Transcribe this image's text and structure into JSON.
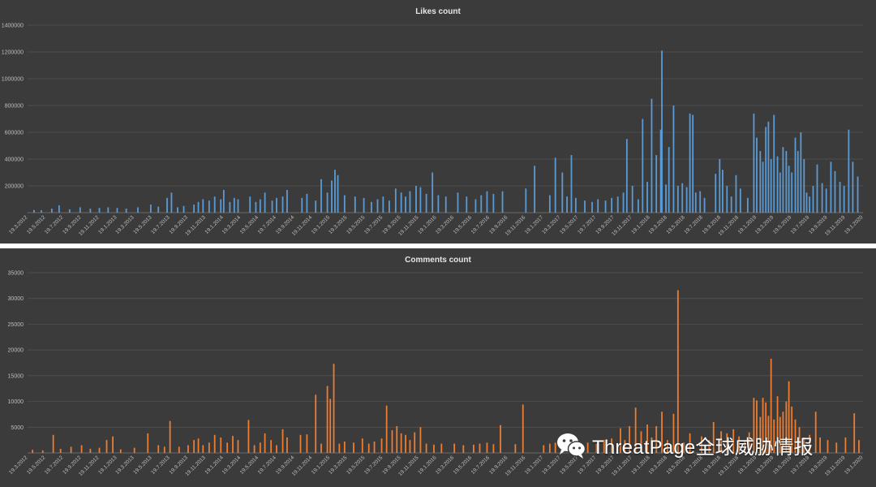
{
  "chart_data": [
    {
      "type": "bar",
      "title": "Likes count",
      "ylim": [
        0,
        1400000
      ],
      "yticks": [
        200000,
        400000,
        600000,
        800000,
        1000000,
        1200000,
        1400000
      ],
      "ytick_labels": [
        "200000",
        "400000",
        "600000",
        "800000",
        "1000000",
        "1200000",
        "1400000"
      ],
      "grid": true,
      "color": "#5b9bd5",
      "x_range": [
        "19.3.2012",
        "19.1.2020"
      ],
      "xtick_labels": [
        "19.3.2012",
        "19.5.2012",
        "19.7.2012",
        "19.9.2012",
        "19.11.2012",
        "19.1.2013",
        "19.3.2013",
        "19.5.2013",
        "19.7.2013",
        "19.9.2013",
        "19.11.2013",
        "19.1.2014",
        "19.3.2014",
        "19.5.2014",
        "19.7.2014",
        "19.9.2014",
        "19.11.2014",
        "19.1.2015",
        "19.3.2015",
        "19.5.2015",
        "19.7.2015",
        "19.9.2015",
        "19.11.2015",
        "19.1.2016",
        "19.3.2016",
        "19.5.2016",
        "19.7.2016",
        "19.9.2016",
        "19.11.2016",
        "19.1.2017",
        "19.3.2017",
        "19.5.2017",
        "19.7.2017",
        "19.9.2017",
        "19.11.2017",
        "19.1.2018",
        "19.3.2018",
        "19.5.2018",
        "19.7.2018",
        "19.9.2018",
        "19.11.2018",
        "19.1.2019",
        "19.3.2019",
        "19.5.2019",
        "19.7.2019",
        "19.9.2019",
        "19.11.2019",
        "19.1.2020"
      ],
      "points": [
        [
          "2012-04-10",
          20000
        ],
        [
          "2012-05-05",
          18000
        ],
        [
          "2012-06-10",
          30000
        ],
        [
          "2012-07-05",
          55000
        ],
        [
          "2012-08-10",
          25000
        ],
        [
          "2012-09-15",
          40000
        ],
        [
          "2012-10-20",
          30000
        ],
        [
          "2012-11-20",
          35000
        ],
        [
          "2012-12-20",
          40000
        ],
        [
          "2013-01-20",
          35000
        ],
        [
          "2013-02-20",
          30000
        ],
        [
          "2013-04-01",
          40000
        ],
        [
          "2013-05-15",
          60000
        ],
        [
          "2013-06-10",
          45000
        ],
        [
          "2013-07-10",
          110000
        ],
        [
          "2013-07-25",
          150000
        ],
        [
          "2013-08-15",
          40000
        ],
        [
          "2013-09-05",
          50000
        ],
        [
          "2013-10-10",
          60000
        ],
        [
          "2013-10-25",
          80000
        ],
        [
          "2013-11-10",
          100000
        ],
        [
          "2013-12-01",
          90000
        ],
        [
          "2013-12-20",
          120000
        ],
        [
          "2014-01-10",
          100000
        ],
        [
          "2014-01-20",
          170000
        ],
        [
          "2014-02-10",
          80000
        ],
        [
          "2014-02-25",
          110000
        ],
        [
          "2014-03-10",
          100000
        ],
        [
          "2014-04-20",
          120000
        ],
        [
          "2014-05-10",
          80000
        ],
        [
          "2014-05-25",
          100000
        ],
        [
          "2014-06-10",
          150000
        ],
        [
          "2014-07-05",
          90000
        ],
        [
          "2014-07-20",
          110000
        ],
        [
          "2014-08-10",
          120000
        ],
        [
          "2014-08-25",
          170000
        ],
        [
          "2014-10-15",
          110000
        ],
        [
          "2014-11-01",
          140000
        ],
        [
          "2014-12-01",
          90000
        ],
        [
          "2014-12-20",
          250000
        ],
        [
          "2015-01-10",
          150000
        ],
        [
          "2015-01-25",
          240000
        ],
        [
          "2015-02-05",
          320000
        ],
        [
          "2015-02-15",
          280000
        ],
        [
          "2015-03-10",
          130000
        ],
        [
          "2015-04-15",
          120000
        ],
        [
          "2015-05-15",
          110000
        ],
        [
          "2015-06-10",
          80000
        ],
        [
          "2015-07-01",
          100000
        ],
        [
          "2015-07-20",
          120000
        ],
        [
          "2015-08-10",
          90000
        ],
        [
          "2015-09-01",
          180000
        ],
        [
          "2015-09-20",
          150000
        ],
        [
          "2015-10-05",
          120000
        ],
        [
          "2015-10-20",
          160000
        ],
        [
          "2015-11-10",
          200000
        ],
        [
          "2015-11-25",
          190000
        ],
        [
          "2015-12-15",
          140000
        ],
        [
          "2016-01-05",
          300000
        ],
        [
          "2016-01-25",
          130000
        ],
        [
          "2016-02-20",
          120000
        ],
        [
          "2016-04-01",
          150000
        ],
        [
          "2016-05-01",
          120000
        ],
        [
          "2016-06-01",
          100000
        ],
        [
          "2016-06-20",
          130000
        ],
        [
          "2016-07-10",
          160000
        ],
        [
          "2016-08-01",
          140000
        ],
        [
          "2016-09-01",
          160000
        ],
        [
          "2016-11-20",
          180000
        ],
        [
          "2016-12-20",
          350000
        ],
        [
          "2017-02-10",
          130000
        ],
        [
          "2017-03-01",
          410000
        ],
        [
          "2017-03-25",
          300000
        ],
        [
          "2017-04-10",
          120000
        ],
        [
          "2017-04-25",
          430000
        ],
        [
          "2017-05-10",
          110000
        ],
        [
          "2017-06-10",
          90000
        ],
        [
          "2017-07-05",
          80000
        ],
        [
          "2017-07-25",
          100000
        ],
        [
          "2017-08-20",
          90000
        ],
        [
          "2017-09-10",
          110000
        ],
        [
          "2017-10-01",
          120000
        ],
        [
          "2017-10-20",
          150000
        ],
        [
          "2017-11-01",
          550000
        ],
        [
          "2017-11-20",
          200000
        ],
        [
          "2017-12-10",
          100000
        ],
        [
          "2017-12-25",
          700000
        ],
        [
          "2018-01-10",
          230000
        ],
        [
          "2018-01-25",
          850000
        ],
        [
          "2018-02-10",
          430000
        ],
        [
          "2018-02-25",
          620000
        ],
        [
          "2018-03-01",
          1210000
        ],
        [
          "2018-03-15",
          210000
        ],
        [
          "2018-03-25",
          490000
        ],
        [
          "2018-04-10",
          800000
        ],
        [
          "2018-04-25",
          200000
        ],
        [
          "2018-05-10",
          220000
        ],
        [
          "2018-05-25",
          190000
        ],
        [
          "2018-06-05",
          740000
        ],
        [
          "2018-06-15",
          730000
        ],
        [
          "2018-06-25",
          150000
        ],
        [
          "2018-07-10",
          160000
        ],
        [
          "2018-07-25",
          110000
        ],
        [
          "2018-09-01",
          290000
        ],
        [
          "2018-09-15",
          400000
        ],
        [
          "2018-09-25",
          320000
        ],
        [
          "2018-10-10",
          200000
        ],
        [
          "2018-10-25",
          120000
        ],
        [
          "2018-11-10",
          280000
        ],
        [
          "2018-11-25",
          180000
        ],
        [
          "2018-12-20",
          110000
        ],
        [
          "2019-01-10",
          740000
        ],
        [
          "2019-01-20",
          560000
        ],
        [
          "2019-02-01",
          460000
        ],
        [
          "2019-02-10",
          380000
        ],
        [
          "2019-02-20",
          640000
        ],
        [
          "2019-03-01",
          680000
        ],
        [
          "2019-03-10",
          400000
        ],
        [
          "2019-03-20",
          730000
        ],
        [
          "2019-04-01",
          420000
        ],
        [
          "2019-04-10",
          300000
        ],
        [
          "2019-04-20",
          490000
        ],
        [
          "2019-05-01",
          460000
        ],
        [
          "2019-05-10",
          350000
        ],
        [
          "2019-05-20",
          300000
        ],
        [
          "2019-06-01",
          560000
        ],
        [
          "2019-06-10",
          460000
        ],
        [
          "2019-06-20",
          600000
        ],
        [
          "2019-07-01",
          400000
        ],
        [
          "2019-07-10",
          150000
        ],
        [
          "2019-07-20",
          120000
        ],
        [
          "2019-08-01",
          200000
        ],
        [
          "2019-08-15",
          360000
        ],
        [
          "2019-09-01",
          220000
        ],
        [
          "2019-09-15",
          180000
        ],
        [
          "2019-10-01",
          380000
        ],
        [
          "2019-10-15",
          310000
        ],
        [
          "2019-11-01",
          230000
        ],
        [
          "2019-11-15",
          200000
        ],
        [
          "2019-12-01",
          620000
        ],
        [
          "2019-12-15",
          380000
        ],
        [
          "2020-01-01",
          270000
        ]
      ]
    },
    {
      "type": "bar",
      "title": "Comments count",
      "ylim": [
        0,
        35000
      ],
      "yticks": [
        5000,
        10000,
        15000,
        20000,
        25000,
        30000,
        35000
      ],
      "ytick_labels": [
        "5000",
        "10000",
        "15000",
        "20000",
        "25000",
        "30000",
        "35000"
      ],
      "grid": true,
      "color": "#ed7d31",
      "x_range": [
        "19.3.2012",
        "19.1.2020"
      ],
      "xtick_labels": [
        "19.3.2012",
        "19.5.2012",
        "19.7.2012",
        "19.9.2012",
        "19.11.2012",
        "19.1.2013",
        "19.3.2013",
        "19.5.2013",
        "19.7.2013",
        "19.9.2013",
        "19.11.2013",
        "19.1.2014",
        "19.3.2014",
        "19.5.2014",
        "19.7.2014",
        "19.9.2014",
        "19.11.2014",
        "19.1.2015",
        "19.3.2015",
        "19.5.2015",
        "19.7.2015",
        "19.9.2015",
        "19.11.2015",
        "19.1.2016",
        "19.3.2016",
        "19.5.2016",
        "19.7.2016",
        "19.9.2016",
        "19.11.2016",
        "19.1.2017",
        "19.3.2017",
        "19.5.2017",
        "19.7.2017",
        "19.9.2017",
        "19.11.2017",
        "19.1.2018",
        "19.3.2018",
        "19.5.2018",
        "19.7.2018",
        "19.9.2018",
        "19.11.2018",
        "19.1.2019",
        "19.3.2019",
        "19.5.2019",
        "19.7.2019",
        "19.9.2019",
        "19.11.2019",
        "19.1.2020"
      ],
      "points": [
        [
          "2012-04-05",
          600
        ],
        [
          "2012-05-10",
          500
        ],
        [
          "2012-06-15",
          3500
        ],
        [
          "2012-07-10",
          800
        ],
        [
          "2012-08-15",
          1200
        ],
        [
          "2012-09-20",
          1500
        ],
        [
          "2012-10-20",
          800
        ],
        [
          "2012-11-20",
          1000
        ],
        [
          "2012-12-15",
          2500
        ],
        [
          "2013-01-05",
          3200
        ],
        [
          "2013-02-01",
          700
        ],
        [
          "2013-03-20",
          1000
        ],
        [
          "2013-05-05",
          3800
        ],
        [
          "2013-06-10",
          1500
        ],
        [
          "2013-07-01",
          1200
        ],
        [
          "2013-07-20",
          6200
        ],
        [
          "2013-08-20",
          1200
        ],
        [
          "2013-09-20",
          1500
        ],
        [
          "2013-10-10",
          2500
        ],
        [
          "2013-10-25",
          2800
        ],
        [
          "2013-11-10",
          1500
        ],
        [
          "2013-12-01",
          2000
        ],
        [
          "2013-12-20",
          3500
        ],
        [
          "2014-01-10",
          3000
        ],
        [
          "2014-02-01",
          2000
        ],
        [
          "2014-02-20",
          3300
        ],
        [
          "2014-03-10",
          2500
        ],
        [
          "2014-04-15",
          6400
        ],
        [
          "2014-05-05",
          1500
        ],
        [
          "2014-05-25",
          2000
        ],
        [
          "2014-06-10",
          3800
        ],
        [
          "2014-07-01",
          2500
        ],
        [
          "2014-07-20",
          1500
        ],
        [
          "2014-08-10",
          4600
        ],
        [
          "2014-08-25",
          3000
        ],
        [
          "2014-10-10",
          3500
        ],
        [
          "2014-11-01",
          3600
        ],
        [
          "2014-12-01",
          11300
        ],
        [
          "2014-12-20",
          1800
        ],
        [
          "2015-01-10",
          13000
        ],
        [
          "2015-01-20",
          10500
        ],
        [
          "2015-02-01",
          17300
        ],
        [
          "2015-02-20",
          1800
        ],
        [
          "2015-03-10",
          2200
        ],
        [
          "2015-04-10",
          2000
        ],
        [
          "2015-05-10",
          2800
        ],
        [
          "2015-06-01",
          1800
        ],
        [
          "2015-06-20",
          2200
        ],
        [
          "2015-07-15",
          2800
        ],
        [
          "2015-08-01",
          9200
        ],
        [
          "2015-08-20",
          4400
        ],
        [
          "2015-09-05",
          5200
        ],
        [
          "2015-09-20",
          3800
        ],
        [
          "2015-10-05",
          3500
        ],
        [
          "2015-10-20",
          2500
        ],
        [
          "2015-11-05",
          4000
        ],
        [
          "2015-11-25",
          5000
        ],
        [
          "2015-12-15",
          1800
        ],
        [
          "2016-01-10",
          1600
        ],
        [
          "2016-02-05",
          1800
        ],
        [
          "2016-03-20",
          1800
        ],
        [
          "2016-04-20",
          1500
        ],
        [
          "2016-05-25",
          1600
        ],
        [
          "2016-06-15",
          1800
        ],
        [
          "2016-07-10",
          2000
        ],
        [
          "2016-08-01",
          1700
        ],
        [
          "2016-08-25",
          5400
        ],
        [
          "2016-10-15",
          1700
        ],
        [
          "2016-11-10",
          9400
        ],
        [
          "2017-01-20",
          1500
        ],
        [
          "2017-02-10",
          1800
        ],
        [
          "2017-03-01",
          2000
        ],
        [
          "2017-03-25",
          1600
        ],
        [
          "2017-04-20",
          1800
        ],
        [
          "2017-05-20",
          1500
        ],
        [
          "2017-06-20",
          2000
        ],
        [
          "2017-07-20",
          1800
        ],
        [
          "2017-08-15",
          2500
        ],
        [
          "2017-09-10",
          2800
        ],
        [
          "2017-10-10",
          4800
        ],
        [
          "2017-10-25",
          2500
        ],
        [
          "2017-11-10",
          5200
        ],
        [
          "2017-12-01",
          8800
        ],
        [
          "2017-12-20",
          4200
        ],
        [
          "2018-01-10",
          5500
        ],
        [
          "2018-01-25",
          3000
        ],
        [
          "2018-02-10",
          5200
        ],
        [
          "2018-03-01",
          8000
        ],
        [
          "2018-03-20",
          2500
        ],
        [
          "2018-04-10",
          7600
        ],
        [
          "2018-04-25",
          31600
        ],
        [
          "2018-05-15",
          2000
        ],
        [
          "2018-06-05",
          3800
        ],
        [
          "2018-07-15",
          3200
        ],
        [
          "2018-08-10",
          2500
        ],
        [
          "2018-08-25",
          6000
        ],
        [
          "2018-09-20",
          4200
        ],
        [
          "2018-10-10",
          3800
        ],
        [
          "2018-11-01",
          4600
        ],
        [
          "2018-11-20",
          3200
        ],
        [
          "2018-12-10",
          2500
        ],
        [
          "2018-12-25",
          4000
        ],
        [
          "2019-01-10",
          10700
        ],
        [
          "2019-01-20",
          10200
        ],
        [
          "2019-02-01",
          7000
        ],
        [
          "2019-02-10",
          10700
        ],
        [
          "2019-02-20",
          9800
        ],
        [
          "2019-03-01",
          7200
        ],
        [
          "2019-03-10",
          18300
        ],
        [
          "2019-03-20",
          6500
        ],
        [
          "2019-04-01",
          11000
        ],
        [
          "2019-04-10",
          7000
        ],
        [
          "2019-04-20",
          8000
        ],
        [
          "2019-05-01",
          10000
        ],
        [
          "2019-05-10",
          13900
        ],
        [
          "2019-05-20",
          9000
        ],
        [
          "2019-06-01",
          6500
        ],
        [
          "2019-06-15",
          5000
        ],
        [
          "2019-07-01",
          3000
        ],
        [
          "2019-07-20",
          3500
        ],
        [
          "2019-08-10",
          8000
        ],
        [
          "2019-08-25",
          3000
        ],
        [
          "2019-09-20",
          2500
        ],
        [
          "2019-10-20",
          2000
        ],
        [
          "2019-11-20",
          3000
        ],
        [
          "2019-12-20",
          7700
        ],
        [
          "2020-01-05",
          2500
        ]
      ]
    }
  ],
  "watermark": {
    "text": "ThreatPage全球威胁情报",
    "icon": "wechat-icon"
  }
}
